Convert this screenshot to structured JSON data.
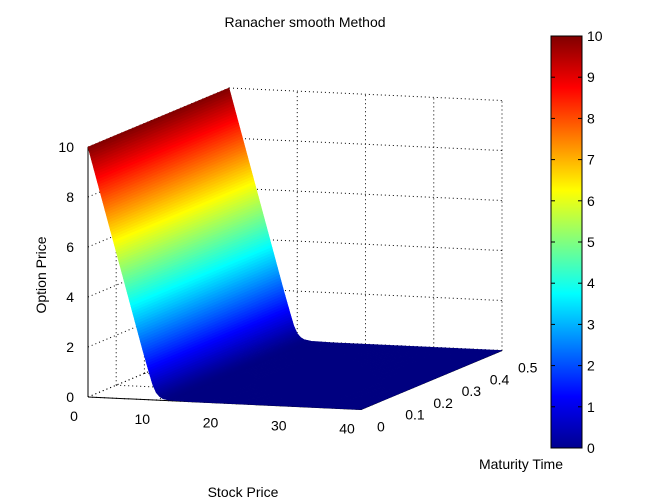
{
  "chart_data": {
    "type": "surface",
    "title": "Ranacher smooth Method",
    "xlabel": "Stock Price",
    "ylabel": "Maturity Time",
    "zlabel": "Option Price",
    "xlim": [
      0,
      40
    ],
    "ylim": [
      0,
      0.5
    ],
    "zlim": [
      0,
      10
    ],
    "xticks": [
      "0",
      "10",
      "20",
      "30",
      "40"
    ],
    "yticks": [
      "0",
      "0.1",
      "0.2",
      "0.3",
      "0.4",
      "0.5"
    ],
    "zticks": [
      "0",
      "2",
      "4",
      "6",
      "8",
      "10"
    ],
    "strike": 10,
    "surface_profile": {
      "stock_price": [
        0,
        2,
        4,
        6,
        8,
        9,
        9.5,
        10,
        10.5,
        11,
        12,
        15,
        20,
        30,
        40
      ],
      "option_price": [
        10,
        8,
        6,
        4,
        2,
        1.05,
        0.6,
        0.3,
        0.15,
        0.07,
        0.02,
        0,
        0,
        0,
        0
      ]
    },
    "colormap": "jet",
    "colorbar": {
      "range": [
        0,
        10
      ],
      "ticks": [
        "0",
        "1",
        "2",
        "3",
        "4",
        "5",
        "6",
        "7",
        "8",
        "9",
        "10"
      ]
    },
    "grid": true
  }
}
